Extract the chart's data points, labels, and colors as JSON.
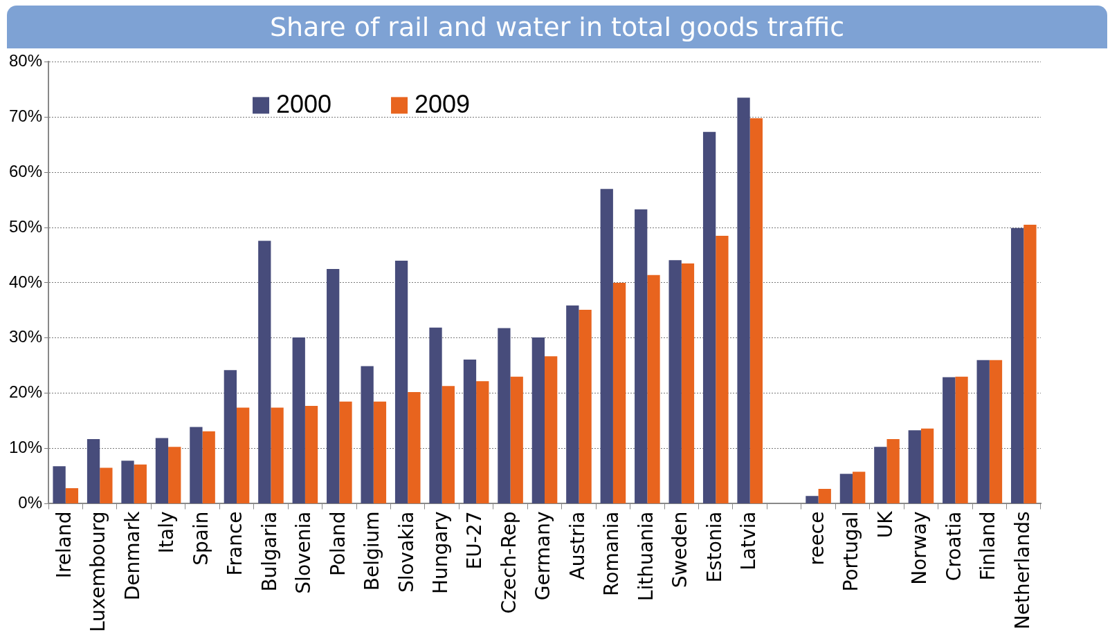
{
  "chart_data": {
    "type": "bar",
    "title": "Share of rail and water in total goods traffic",
    "categories": [
      "Ireland",
      "Luxembourg",
      "Denmark",
      "Italy",
      "Spain",
      "France",
      "Bulgaria",
      "Slovenia",
      "Poland",
      "Belgium",
      "Slovakia",
      "Hungary",
      "EU-27",
      "Czech-Rep",
      "Germany",
      "Austria",
      "Romania",
      "Lithuania",
      "Sweden",
      "Estonia",
      "Latvia",
      null,
      "reece",
      "Portugal",
      "UK",
      "Norway",
      "Croatia",
      "Finland",
      "Netherlands"
    ],
    "series": [
      {
        "name": "2000",
        "color": "#474c7b",
        "values": [
          6.8,
          11.7,
          7.8,
          11.9,
          13.9,
          24.2,
          47.6,
          30.1,
          42.5,
          24.9,
          44.0,
          31.9,
          26.1,
          31.8,
          30.1,
          35.9,
          57.0,
          53.3,
          44.1,
          67.3,
          73.5,
          null,
          1.4,
          5.4,
          10.3,
          13.3,
          22.9,
          26.0,
          49.9
        ]
      },
      {
        "name": "2009",
        "color": "#e8641e",
        "values": [
          2.8,
          6.5,
          7.1,
          10.3,
          13.1,
          17.4,
          17.4,
          17.7,
          18.5,
          18.5,
          20.2,
          21.3,
          22.2,
          23.0,
          26.7,
          35.1,
          40.0,
          41.4,
          43.5,
          48.5,
          69.8,
          null,
          2.7,
          5.8,
          11.7,
          13.6,
          23.0,
          26.0,
          50.5
        ]
      }
    ],
    "ylim": [
      0,
      80
    ],
    "yticks": [
      {
        "value": 0,
        "label": "0%"
      },
      {
        "value": 10,
        "label": "10%"
      },
      {
        "value": 20,
        "label": "20%"
      },
      {
        "value": 30,
        "label": "30%"
      },
      {
        "value": 40,
        "label": "40%"
      },
      {
        "value": 50,
        "label": "50%"
      },
      {
        "value": 60,
        "label": "60%"
      },
      {
        "value": 70,
        "label": "70%"
      },
      {
        "value": 80,
        "label": "80%"
      }
    ],
    "grid": "y",
    "legend": "top left"
  }
}
